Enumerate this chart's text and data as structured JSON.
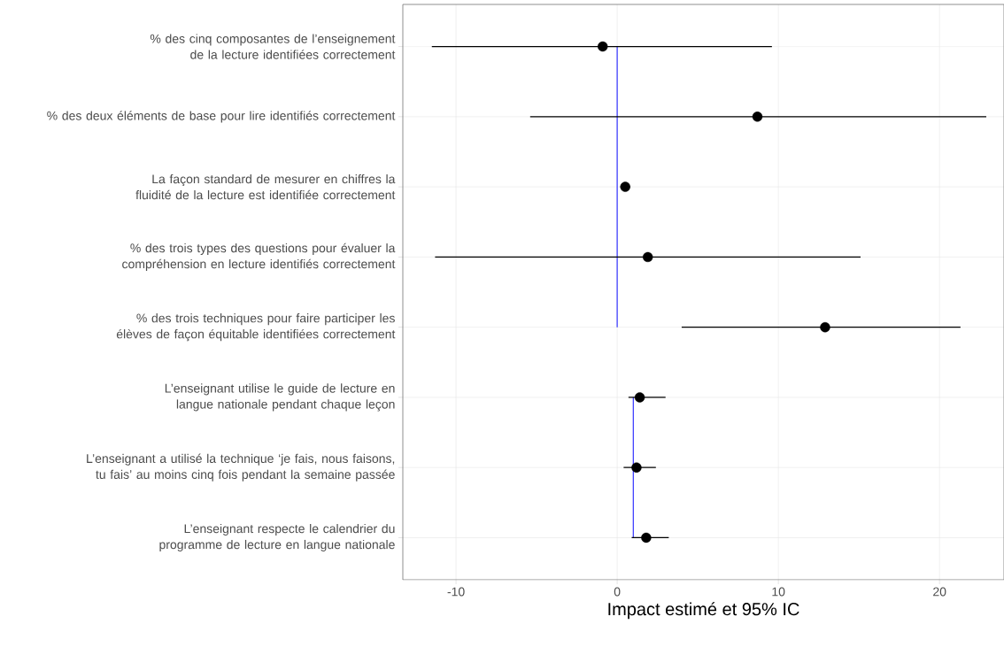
{
  "chart_data": {
    "type": "scatter",
    "orientation": "horizontal",
    "xlabel": "Impact estimé et 95% IC",
    "categories": [
      "% des cinq composantes de l’enseignement de la lecture identifiées correctement",
      "% des deux éléments de base pour lire identifiés correctement",
      "La façon standard de mesurer en chiffres la fluidité de la lecture est identifiée correctement",
      "% des trois types des questions pour évaluer la compréhension en lecture identifiés correctement",
      "% des trois techniques pour faire participer les élèves de façon équitable identifiées correctement",
      "L’enseignant utilise le guide de lecture en langue nationale pendant chaque leçon",
      "L’enseignant a utilisé la technique ‘je fais, nous faisons, tu fais’ au moins cinq fois pendant la semaine passée",
      "L’enseignant respecte le calendrier du programme de lecture en langue nationale"
    ],
    "series": [
      {
        "type": "line",
        "marker": "none",
        "color": "#3333ff",
        "values": [
          0,
          0,
          0,
          0,
          0,
          null,
          null,
          null
        ]
      },
      {
        "type": "line",
        "marker": "none",
        "color": "#3333ff",
        "values": [
          null,
          null,
          null,
          null,
          null,
          1,
          1,
          1
        ]
      },
      {
        "marker": "circle",
        "color": "#000000",
        "values": [
          -0.9,
          8.7,
          0.5,
          1.9,
          12.9,
          1.4,
          1.2,
          1.8
        ],
        "errors": [
          [
            -11.5,
            9.6
          ],
          [
            -5.4,
            22.9
          ],
          [
            0.2,
            0.8
          ],
          [
            -11.3,
            15.1
          ],
          [
            4.0,
            21.3
          ],
          [
            0.7,
            3.0
          ],
          [
            0.4,
            2.4
          ],
          [
            0.9,
            3.2
          ]
        ]
      }
    ],
    "xlim": [
      -13.3,
      24.0
    ],
    "xticks": [
      -10,
      0,
      10,
      20
    ],
    "grid": true,
    "line_style": "solid"
  }
}
